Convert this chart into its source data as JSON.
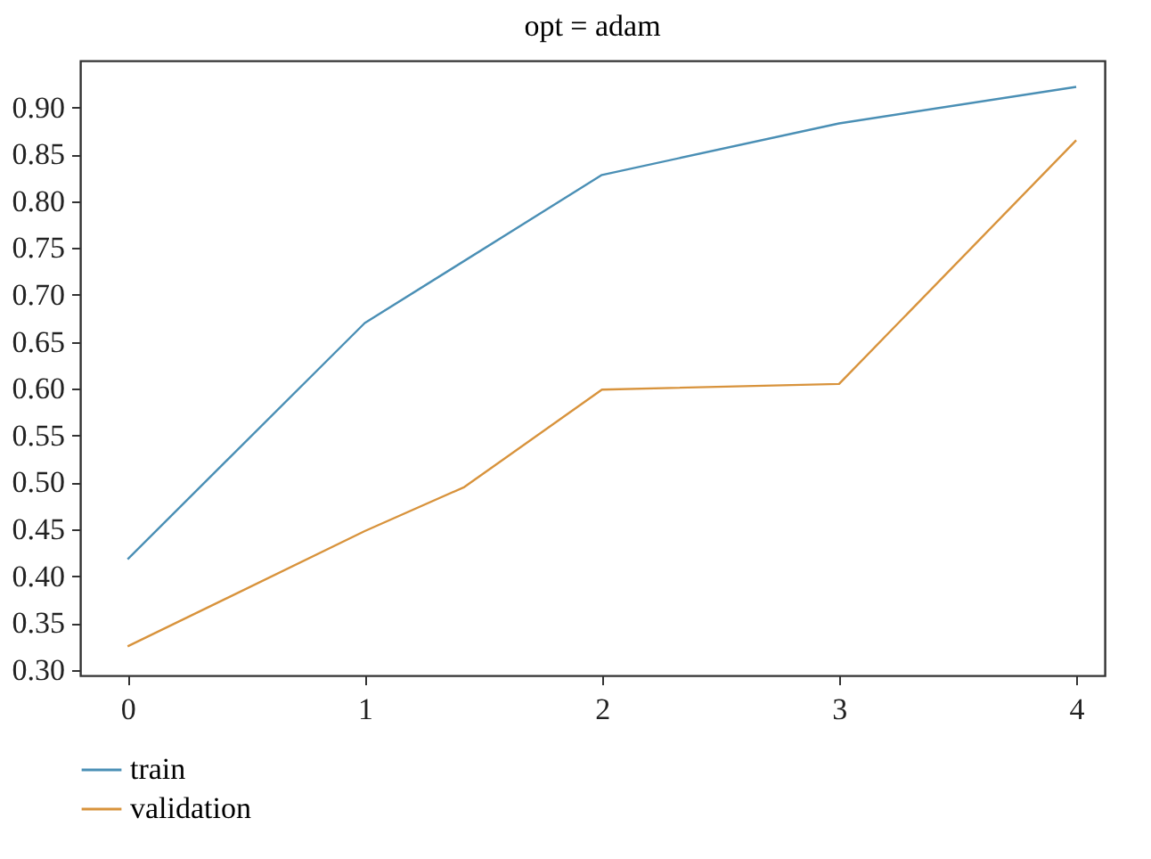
{
  "chart_data": {
    "type": "line",
    "title": "opt = adam",
    "xlim": [
      -0.2,
      4.12
    ],
    "xticks": [
      0,
      1,
      2,
      3,
      4
    ],
    "ylim": [
      0.294,
      0.95
    ],
    "yticks": [
      {
        "value": 0.3,
        "label": "0.30"
      },
      {
        "value": 0.35,
        "label": "0.35"
      },
      {
        "value": 0.4,
        "label": "0.40"
      },
      {
        "value": 0.45,
        "label": "0.45"
      },
      {
        "value": 0.5,
        "label": "0.50"
      },
      {
        "value": 0.55,
        "label": "0.55"
      },
      {
        "value": 0.6,
        "label": "0.60"
      },
      {
        "value": 0.65,
        "label": "0.65"
      },
      {
        "value": 0.7,
        "label": "0.70"
      },
      {
        "value": 0.75,
        "label": "0.75"
      },
      {
        "value": 0.8,
        "label": "0.80"
      },
      {
        "value": 0.85,
        "label": "0.85"
      },
      {
        "value": 0.9,
        "label": "0.90"
      }
    ],
    "grid": false,
    "legend": "bottom left",
    "line_style": "solid",
    "series": [
      {
        "name": "train",
        "color": "#4a8fb5",
        "x": [
          0,
          1,
          2,
          3,
          4
        ],
        "values": [
          0.418,
          0.67,
          0.828,
          0.883,
          0.922
        ]
      },
      {
        "name": "validation",
        "color": "#d8933c",
        "x": [
          0,
          1,
          1.42,
          2,
          3,
          4
        ],
        "values": [
          0.325,
          0.448,
          0.495,
          0.599,
          0.605,
          0.865
        ]
      }
    ]
  }
}
